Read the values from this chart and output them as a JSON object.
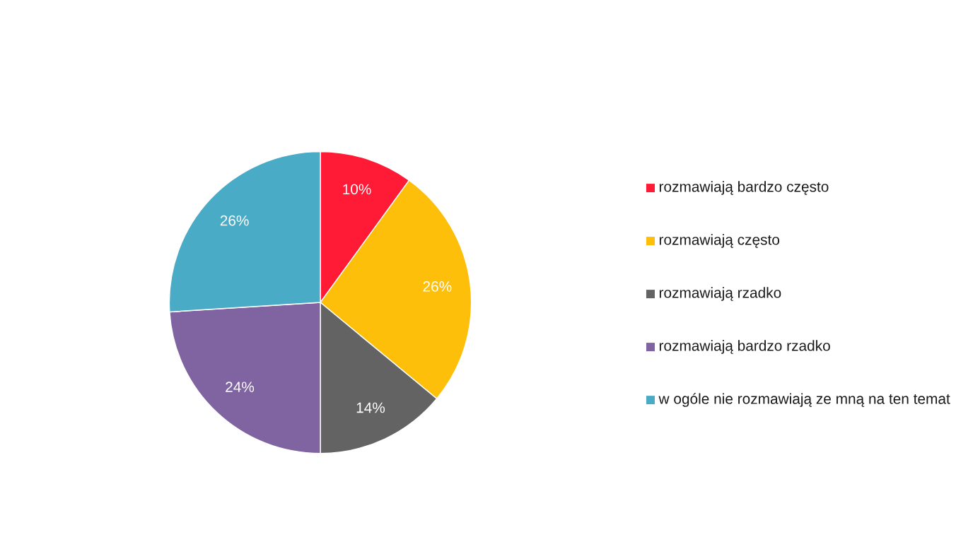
{
  "chart_data": {
    "type": "pie",
    "categories": [
      "rozmawiają bardzo często",
      "rozmawiają często",
      "rozmawiają rzadko",
      "rozmawiają bardzo rzadko",
      "w ogóle nie rozmawiają ze mną na ten temat"
    ],
    "values": [
      10,
      26,
      14,
      24,
      26
    ],
    "value_labels": [
      "10%",
      "26%",
      "14%",
      "24%",
      "26%"
    ],
    "colors": [
      "#ff1a35",
      "#fdbf0a",
      "#636363",
      "#8064a1",
      "#4aabc6"
    ],
    "legend": "right"
  }
}
